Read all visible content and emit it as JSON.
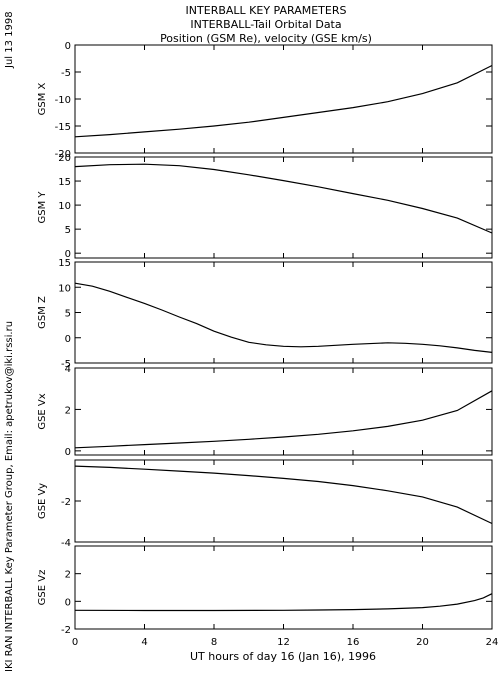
{
  "header": {
    "line1": "INTERBALL KEY PARAMETERS",
    "line2": "INTERBALL-Tail Orbital Data",
    "line3": "Position (GSM Re), velocity (GSE km/s)"
  },
  "side": {
    "date": "Jul 13 1998",
    "credit": "IKI RAN INTERBALL Key Parameter Group, Email: apetrukov@iki.rssi.ru"
  },
  "chart_data": {
    "type": "line",
    "xlabel": "UT hours of day  16 (Jan 16), 1996",
    "xlim": [
      0,
      24
    ],
    "xticks": [
      0,
      4,
      8,
      12,
      16,
      20,
      24
    ],
    "panels": [
      {
        "ylabel": "GSM X",
        "ylim": [
          -20,
          0
        ],
        "yticks": [
          -20,
          -15,
          -10,
          -5,
          0
        ],
        "x": [
          0,
          2,
          4,
          6,
          8,
          10,
          12,
          14,
          16,
          18,
          20,
          22,
          24
        ],
        "y": [
          -17.0,
          -16.6,
          -16.1,
          -15.6,
          -15.0,
          -14.3,
          -13.4,
          -12.5,
          -11.6,
          -10.5,
          -9.0,
          -7.0,
          -3.8
        ]
      },
      {
        "ylabel": "GSM Y",
        "ylim": [
          -1,
          20
        ],
        "yticks": [
          0,
          5,
          10,
          15,
          20
        ],
        "x": [
          0,
          2,
          4,
          6,
          8,
          10,
          12,
          14,
          16,
          18,
          20,
          22,
          24
        ],
        "y": [
          18.0,
          18.4,
          18.5,
          18.2,
          17.4,
          16.3,
          15.1,
          13.8,
          12.4,
          11.0,
          9.3,
          7.3,
          4.2
        ]
      },
      {
        "ylabel": "GSM Z",
        "ylim": [
          -5,
          15
        ],
        "yticks": [
          -5,
          0,
          5,
          10,
          15
        ],
        "x": [
          0,
          1,
          2,
          3,
          4,
          5,
          6,
          7,
          8,
          9,
          10,
          11,
          12,
          13,
          14,
          16,
          18,
          19,
          20,
          21,
          22,
          23,
          24
        ],
        "y": [
          10.8,
          10.2,
          9.2,
          8.0,
          6.8,
          5.5,
          4.1,
          2.8,
          1.3,
          0.1,
          -0.9,
          -1.4,
          -1.7,
          -1.8,
          -1.7,
          -1.3,
          -1.0,
          -1.1,
          -1.3,
          -1.6,
          -2.0,
          -2.5,
          -2.9
        ]
      },
      {
        "ylabel": "GSE Vx",
        "ylim": [
          -0.2,
          4
        ],
        "yticks": [
          0,
          2,
          4
        ],
        "x": [
          0,
          2,
          4,
          6,
          8,
          10,
          12,
          14,
          16,
          18,
          20,
          22,
          24
        ],
        "y": [
          0.15,
          0.22,
          0.3,
          0.38,
          0.46,
          0.56,
          0.67,
          0.8,
          0.97,
          1.18,
          1.48,
          1.95,
          2.9
        ]
      },
      {
        "ylabel": "GSE Vy",
        "ylim": [
          -4,
          0
        ],
        "yticks": [
          -4,
          -2
        ],
        "x": [
          0,
          2,
          4,
          6,
          8,
          10,
          12,
          14,
          16,
          18,
          20,
          22,
          24
        ],
        "y": [
          -0.3,
          -0.36,
          -0.45,
          -0.54,
          -0.64,
          -0.76,
          -0.9,
          -1.05,
          -1.25,
          -1.5,
          -1.8,
          -2.3,
          -3.1
        ]
      },
      {
        "ylabel": "GSE Vz",
        "ylim": [
          -2,
          4
        ],
        "yticks": [
          -2,
          0,
          2
        ],
        "x": [
          0,
          4,
          8,
          12,
          14,
          16,
          18,
          20,
          21,
          22,
          23,
          23.5,
          24
        ],
        "y": [
          -0.65,
          -0.66,
          -0.66,
          -0.65,
          -0.63,
          -0.6,
          -0.55,
          -0.45,
          -0.35,
          -0.2,
          0.05,
          0.25,
          0.55
        ]
      }
    ]
  }
}
